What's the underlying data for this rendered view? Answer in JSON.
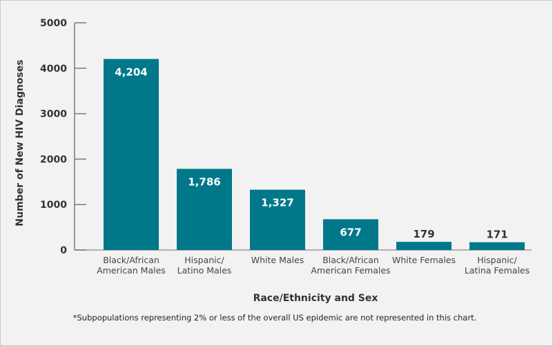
{
  "chart_data": {
    "type": "bar",
    "categories": [
      [
        "Black/African",
        "American Males"
      ],
      [
        "Hispanic/",
        "Latino Males"
      ],
      [
        "White Males"
      ],
      [
        "Black/African",
        "American Females"
      ],
      [
        "White Females"
      ],
      [
        "Hispanic/",
        "Latina Females"
      ]
    ],
    "values": [
      4204,
      1786,
      1327,
      677,
      179,
      171
    ],
    "data_labels": [
      "4,204",
      "1,786",
      "1,327",
      "677",
      "179",
      "171"
    ],
    "xlabel": "Race/Ethnicity and Sex",
    "ylabel": "Number of New HIV Diagnoses",
    "ylim": [
      0,
      5000
    ],
    "yticks": [
      0,
      1000,
      2000,
      3000,
      4000,
      5000
    ],
    "grid": false,
    "bar_color": "#00788a",
    "footnote": "*Subpopulations representing 2% or less of the overall US epidemic are not represented in this chart."
  }
}
